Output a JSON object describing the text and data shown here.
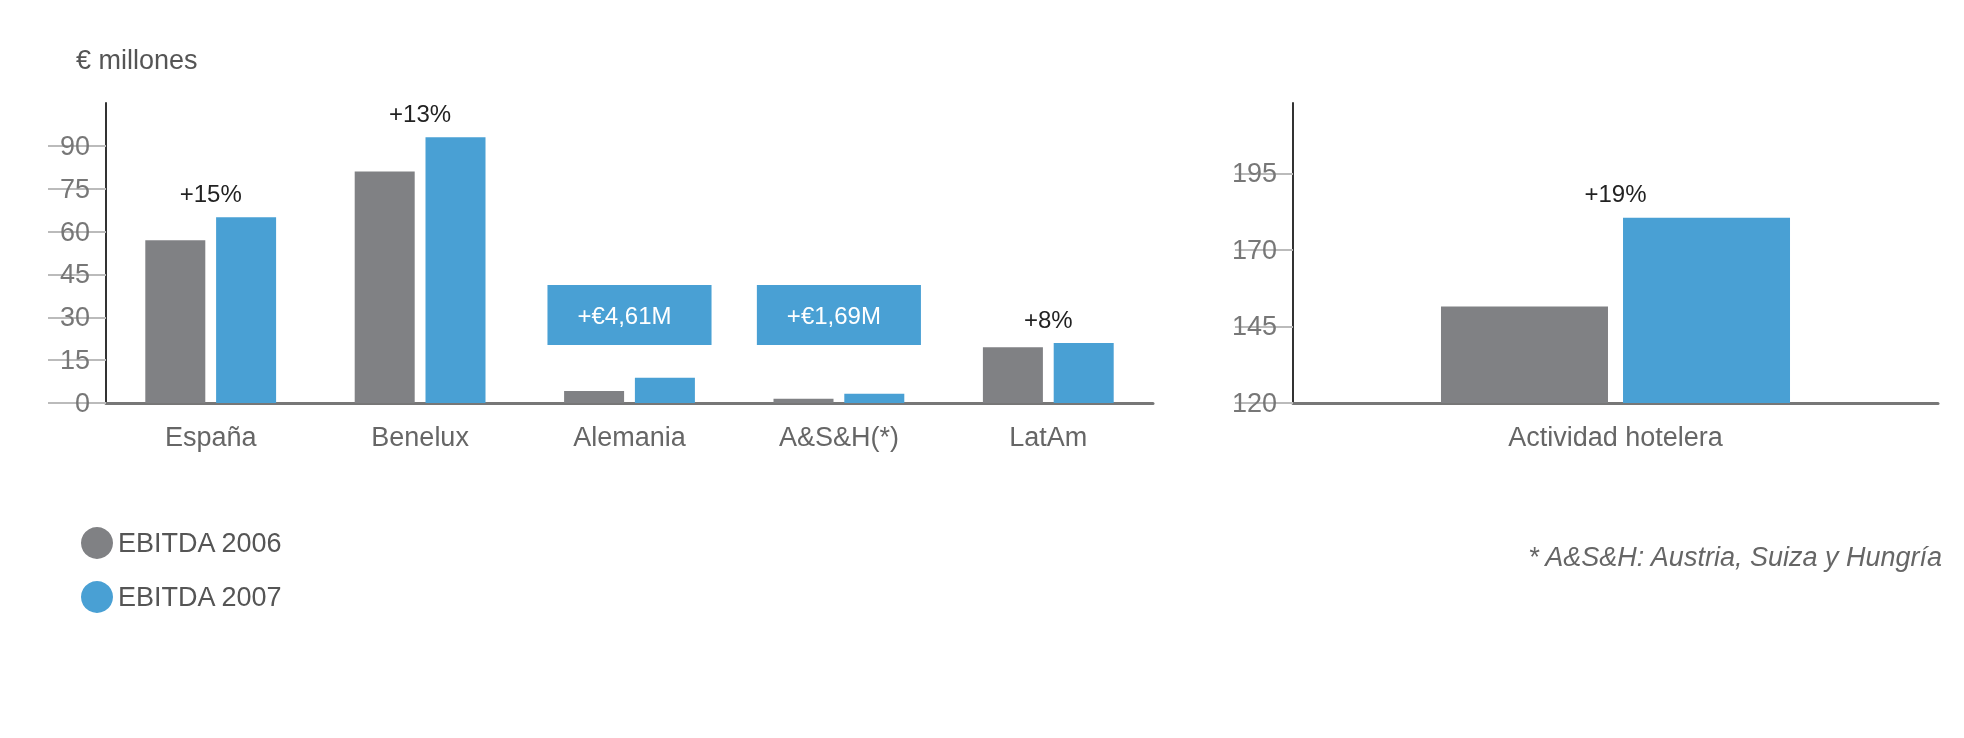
{
  "chart_data": [
    {
      "type": "bar",
      "ylabel": "€ millones",
      "categories": [
        "España",
        "Benelux",
        "Alemania",
        "A&S&H(*)",
        "LatAm"
      ],
      "series": [
        {
          "name": "EBITDA 2006",
          "color": "#808184",
          "values": [
            57,
            81,
            4.2,
            1.5,
            19.5
          ]
        },
        {
          "name": "EBITDA 2007",
          "color": "#49a0d4",
          "values": [
            65,
            93,
            8.8,
            3.2,
            21
          ]
        }
      ],
      "ylim": [
        0,
        105
      ],
      "yticks": [
        0,
        15,
        30,
        45,
        60,
        75,
        90
      ],
      "grid": false,
      "legend": "bottom left",
      "annotations": [
        "+15%",
        "+13%",
        "+€4,61M",
        "+€1,69M",
        "+8%"
      ]
    },
    {
      "type": "bar",
      "categories": [
        "Actividad hotelera"
      ],
      "series": [
        {
          "color": "#808184",
          "values": [
            151.5
          ]
        },
        {
          "color": "#49a0d4",
          "values": [
            180.5
          ]
        }
      ],
      "ylim": [
        120,
        218
      ],
      "yticks": [
        120,
        145,
        170,
        195
      ],
      "grid": false,
      "annotations": [
        "+19%",
        "* A&S&H: Austria, Suiza y Hungría"
      ]
    }
  ]
}
